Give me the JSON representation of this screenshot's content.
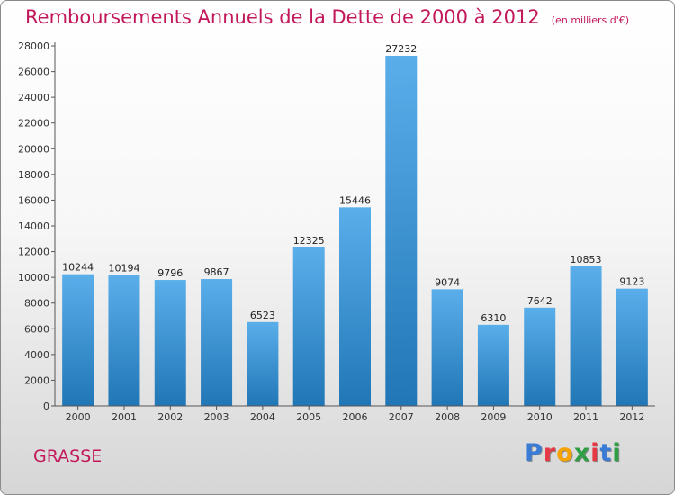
{
  "header": {
    "title": "Remboursements Annuels de la Dette de 2000 à 2012",
    "subtitle": "(en milliers d'€)"
  },
  "footer": {
    "city": "GRASSE",
    "logo_text": "Proxiti"
  },
  "colors": {
    "bar_top": "#5aaeea",
    "bar_bottom": "#2176b6",
    "title": "#c2185b",
    "logo_letters": [
      "#3a7bd5",
      "#e63946",
      "#f4a300",
      "#2e9e44",
      "#e63946",
      "#3a7bd5",
      "#2e9e44"
    ]
  },
  "chart_data": {
    "type": "bar",
    "title": "Remboursements Annuels de la Dette de 2000 à 2012",
    "subtitle": "(en milliers d'€)",
    "categories": [
      "2000",
      "2001",
      "2002",
      "2003",
      "2004",
      "2005",
      "2006",
      "2007",
      "2008",
      "2009",
      "2010",
      "2011",
      "2012"
    ],
    "values": [
      10244,
      10194,
      9796,
      9867,
      6523,
      12325,
      15446,
      27232,
      9074,
      6310,
      7642,
      10853,
      9123
    ],
    "ylim": [
      0,
      28000
    ],
    "yticks": [
      0,
      2000,
      4000,
      6000,
      8000,
      10000,
      12000,
      14000,
      16000,
      18000,
      20000,
      22000,
      24000,
      26000,
      28000
    ],
    "grid": false,
    "data_labels": true,
    "xlabel": "",
    "ylabel": ""
  }
}
